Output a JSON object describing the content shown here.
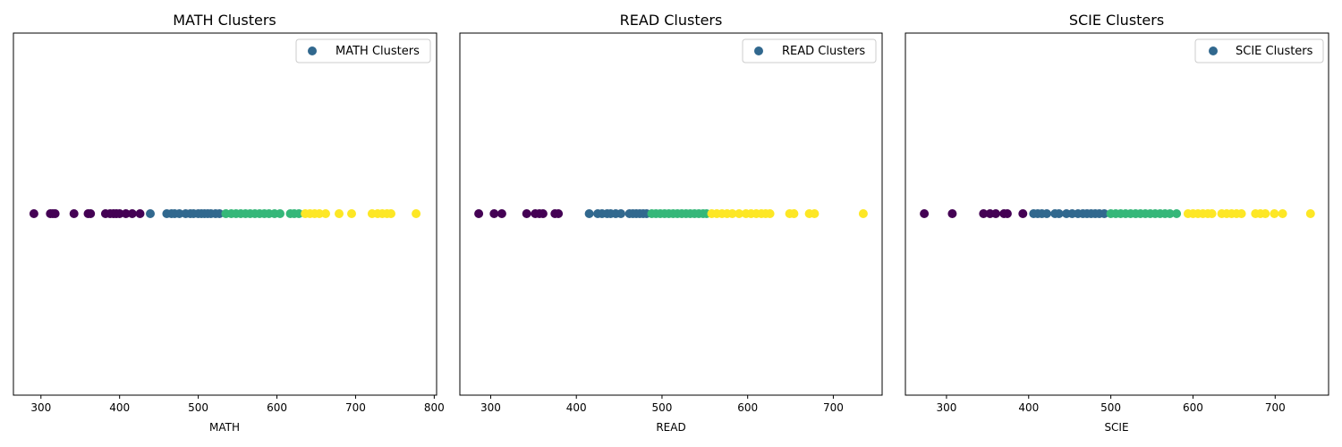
{
  "chart_data": [
    {
      "type": "scatter",
      "title": "MATH Clusters",
      "xlabel": "MATH",
      "ylabel": "",
      "legend": "MATH Clusters",
      "legend_placement": "top-right",
      "grid": false,
      "xlim": [
        265,
        803
      ],
      "xticks": [
        300,
        400,
        500,
        600,
        700,
        800
      ],
      "y_value": 0,
      "cluster_colors": [
        "#440154",
        "#31688e",
        "#35b779",
        "#fde725"
      ],
      "points": [
        {
          "x": 291,
          "c": 0
        },
        {
          "x": 312,
          "c": 0
        },
        {
          "x": 315,
          "c": 0
        },
        {
          "x": 318,
          "c": 0
        },
        {
          "x": 342,
          "c": 0
        },
        {
          "x": 360,
          "c": 0
        },
        {
          "x": 363,
          "c": 0
        },
        {
          "x": 382,
          "c": 0
        },
        {
          "x": 388,
          "c": 0
        },
        {
          "x": 392,
          "c": 0
        },
        {
          "x": 396,
          "c": 0
        },
        {
          "x": 400,
          "c": 0
        },
        {
          "x": 408,
          "c": 0
        },
        {
          "x": 416,
          "c": 0
        },
        {
          "x": 426,
          "c": 0
        },
        {
          "x": 439,
          "c": 1
        },
        {
          "x": 460,
          "c": 1
        },
        {
          "x": 466,
          "c": 1
        },
        {
          "x": 470,
          "c": 1
        },
        {
          "x": 476,
          "c": 1
        },
        {
          "x": 484,
          "c": 1
        },
        {
          "x": 490,
          "c": 1
        },
        {
          "x": 494,
          "c": 1
        },
        {
          "x": 500,
          "c": 1
        },
        {
          "x": 504,
          "c": 1
        },
        {
          "x": 508,
          "c": 1
        },
        {
          "x": 512,
          "c": 1
        },
        {
          "x": 516,
          "c": 1
        },
        {
          "x": 522,
          "c": 1
        },
        {
          "x": 527,
          "c": 1
        },
        {
          "x": 535,
          "c": 2
        },
        {
          "x": 542,
          "c": 2
        },
        {
          "x": 548,
          "c": 2
        },
        {
          "x": 554,
          "c": 2
        },
        {
          "x": 560,
          "c": 2
        },
        {
          "x": 566,
          "c": 2
        },
        {
          "x": 572,
          "c": 2
        },
        {
          "x": 578,
          "c": 2
        },
        {
          "x": 584,
          "c": 2
        },
        {
          "x": 590,
          "c": 2
        },
        {
          "x": 597,
          "c": 2
        },
        {
          "x": 604,
          "c": 2
        },
        {
          "x": 617,
          "c": 2
        },
        {
          "x": 622,
          "c": 2
        },
        {
          "x": 628,
          "c": 2
        },
        {
          "x": 636,
          "c": 3
        },
        {
          "x": 642,
          "c": 3
        },
        {
          "x": 648,
          "c": 3
        },
        {
          "x": 654,
          "c": 3
        },
        {
          "x": 662,
          "c": 3
        },
        {
          "x": 679,
          "c": 3
        },
        {
          "x": 695,
          "c": 3
        },
        {
          "x": 721,
          "c": 3
        },
        {
          "x": 728,
          "c": 3
        },
        {
          "x": 734,
          "c": 3
        },
        {
          "x": 740,
          "c": 3
        },
        {
          "x": 745,
          "c": 3
        },
        {
          "x": 777,
          "c": 3
        }
      ]
    },
    {
      "type": "scatter",
      "title": "READ Clusters",
      "xlabel": "READ",
      "ylabel": "",
      "legend": "READ Clusters",
      "legend_placement": "top-right",
      "grid": false,
      "xlim": [
        264,
        757
      ],
      "xticks": [
        300,
        400,
        500,
        600,
        700
      ],
      "y_value": 0,
      "cluster_colors": [
        "#440154",
        "#31688e",
        "#35b779",
        "#fde725"
      ],
      "points": [
        {
          "x": 286,
          "c": 0
        },
        {
          "x": 304,
          "c": 0
        },
        {
          "x": 313,
          "c": 0
        },
        {
          "x": 342,
          "c": 0
        },
        {
          "x": 352,
          "c": 0
        },
        {
          "x": 357,
          "c": 0
        },
        {
          "x": 361,
          "c": 0
        },
        {
          "x": 375,
          "c": 0
        },
        {
          "x": 379,
          "c": 0
        },
        {
          "x": 415,
          "c": 1
        },
        {
          "x": 425,
          "c": 1
        },
        {
          "x": 430,
          "c": 1
        },
        {
          "x": 436,
          "c": 1
        },
        {
          "x": 440,
          "c": 1
        },
        {
          "x": 446,
          "c": 1
        },
        {
          "x": 452,
          "c": 1
        },
        {
          "x": 462,
          "c": 1
        },
        {
          "x": 466,
          "c": 1
        },
        {
          "x": 470,
          "c": 1
        },
        {
          "x": 474,
          "c": 1
        },
        {
          "x": 478,
          "c": 1
        },
        {
          "x": 482,
          "c": 1
        },
        {
          "x": 488,
          "c": 2
        },
        {
          "x": 493,
          "c": 2
        },
        {
          "x": 498,
          "c": 2
        },
        {
          "x": 503,
          "c": 2
        },
        {
          "x": 508,
          "c": 2
        },
        {
          "x": 513,
          "c": 2
        },
        {
          "x": 518,
          "c": 2
        },
        {
          "x": 523,
          "c": 2
        },
        {
          "x": 528,
          "c": 2
        },
        {
          "x": 533,
          "c": 2
        },
        {
          "x": 538,
          "c": 2
        },
        {
          "x": 543,
          "c": 2
        },
        {
          "x": 548,
          "c": 2
        },
        {
          "x": 552,
          "c": 2
        },
        {
          "x": 558,
          "c": 3
        },
        {
          "x": 564,
          "c": 3
        },
        {
          "x": 570,
          "c": 3
        },
        {
          "x": 576,
          "c": 3
        },
        {
          "x": 582,
          "c": 3
        },
        {
          "x": 590,
          "c": 3
        },
        {
          "x": 598,
          "c": 3
        },
        {
          "x": 604,
          "c": 3
        },
        {
          "x": 610,
          "c": 3
        },
        {
          "x": 616,
          "c": 3
        },
        {
          "x": 621,
          "c": 3
        },
        {
          "x": 626,
          "c": 3
        },
        {
          "x": 649,
          "c": 3
        },
        {
          "x": 654,
          "c": 3
        },
        {
          "x": 672,
          "c": 3
        },
        {
          "x": 678,
          "c": 3
        },
        {
          "x": 735,
          "c": 3
        }
      ]
    },
    {
      "type": "scatter",
      "title": "SCIE Clusters",
      "xlabel": "SCIE",
      "ylabel": "",
      "legend": "SCIE Clusters",
      "legend_placement": "top-right",
      "grid": false,
      "xlim": [
        250,
        765
      ],
      "xticks": [
        300,
        400,
        500,
        600,
        700
      ],
      "y_value": 0,
      "cluster_colors": [
        "#440154",
        "#31688e",
        "#35b779",
        "#fde725"
      ],
      "points": [
        {
          "x": 273,
          "c": 0
        },
        {
          "x": 307,
          "c": 0
        },
        {
          "x": 345,
          "c": 0
        },
        {
          "x": 353,
          "c": 0
        },
        {
          "x": 360,
          "c": 0
        },
        {
          "x": 370,
          "c": 0
        },
        {
          "x": 374,
          "c": 0
        },
        {
          "x": 393,
          "c": 0
        },
        {
          "x": 406,
          "c": 1
        },
        {
          "x": 411,
          "c": 1
        },
        {
          "x": 416,
          "c": 1
        },
        {
          "x": 422,
          "c": 1
        },
        {
          "x": 432,
          "c": 1
        },
        {
          "x": 437,
          "c": 1
        },
        {
          "x": 446,
          "c": 1
        },
        {
          "x": 453,
          "c": 1
        },
        {
          "x": 460,
          "c": 1
        },
        {
          "x": 466,
          "c": 1
        },
        {
          "x": 471,
          "c": 1
        },
        {
          "x": 476,
          "c": 1
        },
        {
          "x": 481,
          "c": 1
        },
        {
          "x": 486,
          "c": 1
        },
        {
          "x": 492,
          "c": 1
        },
        {
          "x": 500,
          "c": 2
        },
        {
          "x": 506,
          "c": 2
        },
        {
          "x": 512,
          "c": 2
        },
        {
          "x": 518,
          "c": 2
        },
        {
          "x": 524,
          "c": 2
        },
        {
          "x": 530,
          "c": 2
        },
        {
          "x": 536,
          "c": 2
        },
        {
          "x": 542,
          "c": 2
        },
        {
          "x": 548,
          "c": 2
        },
        {
          "x": 554,
          "c": 2
        },
        {
          "x": 560,
          "c": 2
        },
        {
          "x": 566,
          "c": 2
        },
        {
          "x": 572,
          "c": 2
        },
        {
          "x": 580,
          "c": 2
        },
        {
          "x": 594,
          "c": 3
        },
        {
          "x": 600,
          "c": 3
        },
        {
          "x": 606,
          "c": 3
        },
        {
          "x": 612,
          "c": 3
        },
        {
          "x": 618,
          "c": 3
        },
        {
          "x": 623,
          "c": 3
        },
        {
          "x": 635,
          "c": 3
        },
        {
          "x": 641,
          "c": 3
        },
        {
          "x": 647,
          "c": 3
        },
        {
          "x": 653,
          "c": 3
        },
        {
          "x": 659,
          "c": 3
        },
        {
          "x": 676,
          "c": 3
        },
        {
          "x": 682,
          "c": 3
        },
        {
          "x": 688,
          "c": 3
        },
        {
          "x": 699,
          "c": 3
        },
        {
          "x": 709,
          "c": 3
        },
        {
          "x": 743,
          "c": 3
        }
      ]
    }
  ]
}
